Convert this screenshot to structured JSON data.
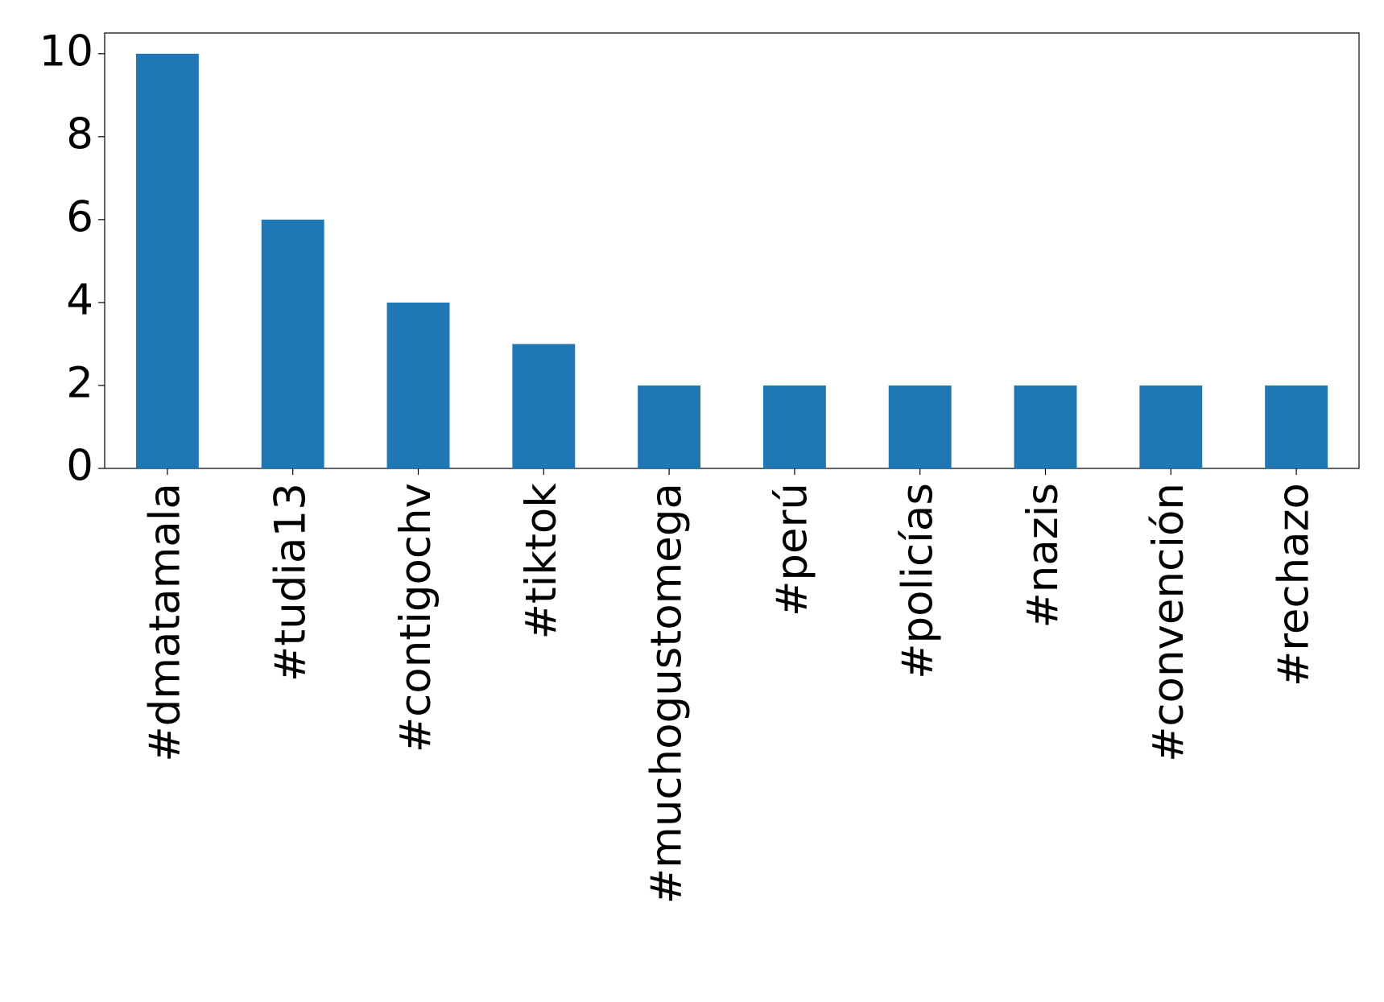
{
  "chart_data": {
    "type": "bar",
    "categories": [
      "#dmatamala",
      "#tudia13",
      "#contigochv",
      "#tiktok",
      "#muchogustomega",
      "#perú",
      "#policías",
      "#nazis",
      "#convención",
      "#rechazo"
    ],
    "values": [
      10,
      6,
      4,
      3,
      2,
      2,
      2,
      2,
      2,
      2
    ],
    "color": "#1f77b4",
    "ylim": [
      0,
      10.5
    ],
    "yticks": [
      0,
      2,
      4,
      6,
      8,
      10
    ],
    "grid": false
  }
}
